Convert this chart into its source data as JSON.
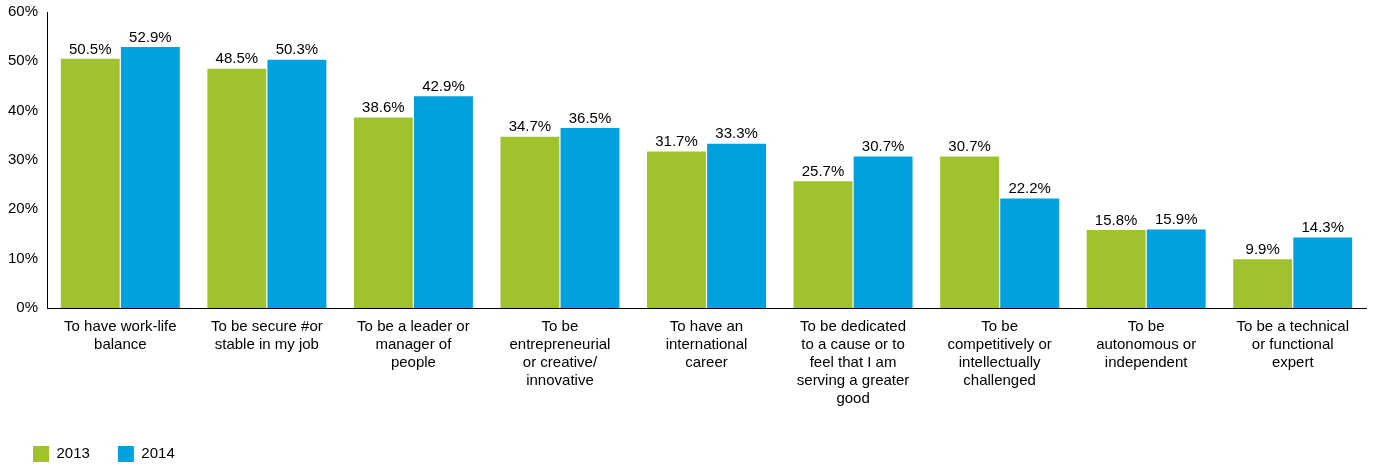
{
  "chart_data": {
    "type": "bar",
    "categories": [
      "To have work-life balance",
      "To be secure #or stable in my job",
      "To be a leader or manager of people",
      "To be entrepreneurial or creative/ innovative",
      "To have an international career",
      "To be dedicated to a cause or to feel that I am serving a greater good",
      "To be competitively or intellectually challenged",
      "To be autonomous or independent",
      "To be a technical or functional expert"
    ],
    "series": [
      {
        "name": "2013",
        "color": "#a0c32d",
        "values": [
          50.5,
          48.5,
          38.6,
          34.7,
          31.7,
          25.7,
          30.7,
          15.8,
          9.9
        ],
        "value_labels": [
          "50.5%",
          "48.5%",
          "38.6%",
          "34.7%",
          "31.7%",
          "25.7%",
          "30.7%",
          "15.8%",
          "9.9%"
        ]
      },
      {
        "name": "2014",
        "color": "#00a1de",
        "values": [
          52.9,
          50.3,
          42.9,
          36.5,
          33.3,
          30.7,
          22.2,
          15.9,
          14.3
        ],
        "value_labels": [
          "52.9%",
          "50.3%",
          "42.9%",
          "36.5%",
          "33.3%",
          "30.7%",
          "22.2%",
          "15.9%",
          "14.3%"
        ]
      }
    ],
    "ylim": [
      0,
      60
    ],
    "yticks": [
      {
        "value": 0,
        "label": "0%"
      },
      {
        "value": 10,
        "label": "10%"
      },
      {
        "value": 20,
        "label": "20%"
      },
      {
        "value": 30,
        "label": "30%"
      },
      {
        "value": 40,
        "label": "40%"
      },
      {
        "value": 50,
        "label": "50%"
      },
      {
        "value": 60,
        "label": "60%"
      }
    ],
    "grid": false,
    "legend": "bottom left"
  }
}
